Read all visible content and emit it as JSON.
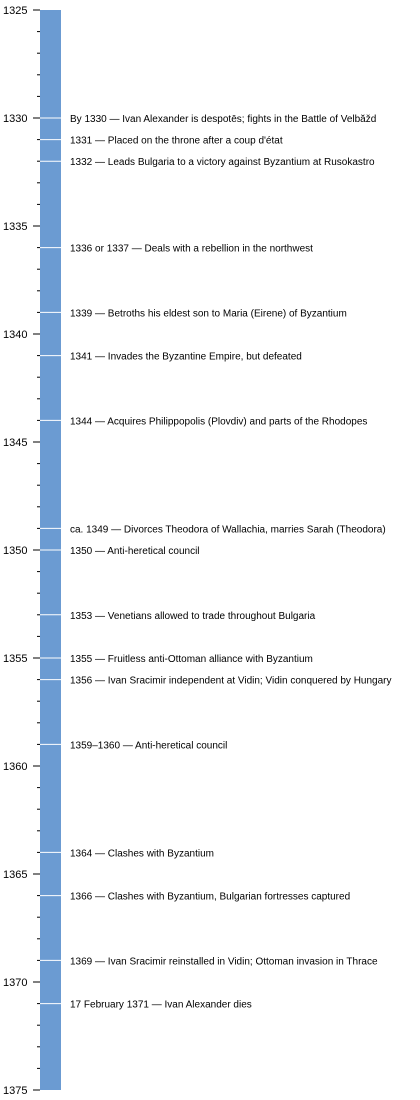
{
  "chart_data": {
    "type": "timeline",
    "axis": {
      "min": 1325,
      "max": 1375,
      "major_step": 5,
      "minor_step": 1,
      "major_labels": [
        "1325",
        "1330",
        "1335",
        "1340",
        "1345",
        "1350",
        "1355",
        "1360",
        "1365",
        "1370",
        "1375"
      ]
    },
    "bar_color": "#6b9bd2",
    "line_color": "#ffffff",
    "tick_color": "#000000",
    "events": [
      {
        "year": 1330,
        "label": "By 1330 — Ivan Alexander is despotēs; fights in the Battle of Velbăžd"
      },
      {
        "year": 1331,
        "label": "1331 — Placed on the throne after a coup d'état"
      },
      {
        "year": 1332,
        "label": "1332 — Leads Bulgaria to a victory against Byzantium at Rusokastro"
      },
      {
        "year": 1336,
        "label": "1336 or 1337 — Deals with a rebellion in the northwest"
      },
      {
        "year": 1339,
        "label": "1339 — Betroths his eldest son to Maria (Eirene) of Byzantium"
      },
      {
        "year": 1341,
        "label": "1341 — Invades the Byzantine Empire, but defeated"
      },
      {
        "year": 1344,
        "label": "1344 — Acquires Philippopolis (Plovdiv) and parts of the Rhodopes"
      },
      {
        "year": 1349,
        "label": "ca. 1349 — Divorces Theodora of Wallachia, marries Sarah (Theodora)"
      },
      {
        "year": 1350,
        "label": "1350 — Anti-heretical council"
      },
      {
        "year": 1353,
        "label": "1353 — Venetians allowed to trade throughout Bulgaria"
      },
      {
        "year": 1355,
        "label": "1355 — Fruitless anti-Ottoman alliance with Byzantium"
      },
      {
        "year": 1356,
        "label": "1356 — Ivan Sracimir independent at Vidin; Vidin conquered by Hungary"
      },
      {
        "year": 1359,
        "label": "1359–1360 — Anti-heretical council"
      },
      {
        "year": 1364,
        "label": "1364 — Clashes with Byzantium"
      },
      {
        "year": 1366,
        "label": "1366 — Clashes with Byzantium, Bulgarian fortresses captured"
      },
      {
        "year": 1369,
        "label": "1369 — Ivan Sracimir reinstalled in Vidin; Ottoman invasion in Thrace"
      },
      {
        "year": 1371,
        "label": "17 February 1371 — Ivan Alexander dies"
      }
    ]
  }
}
